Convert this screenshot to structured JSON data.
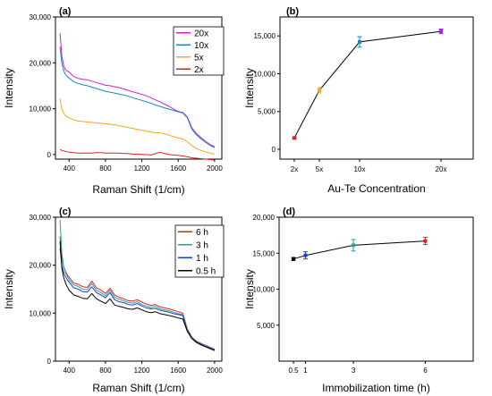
{
  "chart_data": [
    {
      "id": "a",
      "type": "line",
      "panel_label": "(a)",
      "xlabel": "Raman Shift (1/cm)",
      "ylabel": "Intensity",
      "xlim": [
        250,
        2080
      ],
      "ylim": [
        -1000,
        30000
      ],
      "xticks": [
        400,
        800,
        1200,
        1600,
        2000
      ],
      "yticks": [
        0,
        10000,
        20000,
        30000
      ],
      "ytick_labels": [
        "0",
        "10,000",
        "20,000",
        "30,000"
      ],
      "legend_position": "top-right",
      "series": [
        {
          "name": "20x",
          "color": "#d21fd2",
          "x": [
            300,
            320,
            340,
            360,
            380,
            400,
            450,
            500,
            550,
            600,
            650,
            700,
            750,
            800,
            850,
            900,
            950,
            1000,
            1050,
            1100,
            1150,
            1200,
            1250,
            1300,
            1350,
            1400,
            1450,
            1500,
            1550,
            1600,
            1650,
            1700,
            1750,
            1800,
            1850,
            1900,
            1950,
            2000
          ],
          "y": [
            26500,
            21500,
            19500,
            18500,
            18200,
            18000,
            17000,
            16600,
            16400,
            16300,
            16000,
            15700,
            15400,
            15100,
            15000,
            14800,
            14600,
            14300,
            14000,
            13700,
            13400,
            13100,
            12800,
            12400,
            11900,
            11500,
            11000,
            10500,
            9900,
            9400,
            9200,
            8200,
            5800,
            4600,
            3700,
            2900,
            2200,
            1700
          ]
        },
        {
          "name": "10x",
          "color": "#1b85c8",
          "x": [
            300,
            320,
            340,
            360,
            380,
            400,
            450,
            500,
            550,
            600,
            650,
            700,
            750,
            800,
            850,
            900,
            950,
            1000,
            1050,
            1100,
            1150,
            1200,
            1250,
            1300,
            1350,
            1400,
            1450,
            1500,
            1550,
            1600,
            1650,
            1700,
            1750,
            1800,
            1850,
            1900,
            1950,
            2000
          ],
          "y": [
            23500,
            20000,
            18300,
            17500,
            17000,
            16700,
            15900,
            15500,
            15200,
            15000,
            14700,
            14400,
            14100,
            13800,
            13600,
            13400,
            13200,
            13000,
            12700,
            12400,
            12100,
            11800,
            11500,
            11200,
            10800,
            10500,
            10200,
            9900,
            9600,
            9300,
            9100,
            8000,
            5500,
            4300,
            3400,
            2700,
            2000,
            1500
          ]
        },
        {
          "name": "5x",
          "color": "#f5a623",
          "x": [
            300,
            320,
            340,
            360,
            380,
            400,
            450,
            500,
            550,
            600,
            650,
            700,
            750,
            800,
            850,
            900,
            950,
            1000,
            1050,
            1100,
            1150,
            1200,
            1250,
            1300,
            1350,
            1400,
            1450,
            1500,
            1550,
            1600,
            1650,
            1700,
            1750,
            1800,
            1850,
            1900,
            1950,
            2000
          ],
          "y": [
            12200,
            10000,
            9000,
            8500,
            8200,
            8000,
            7600,
            7300,
            7200,
            7100,
            7000,
            6900,
            6800,
            6700,
            6600,
            6500,
            6300,
            6100,
            5900,
            5700,
            5500,
            5300,
            5100,
            4900,
            4700,
            4800,
            4500,
            4200,
            3900,
            3600,
            3400,
            2800,
            1900,
            1300,
            900,
            600,
            300,
            100
          ]
        },
        {
          "name": "2x",
          "color": "#e02020",
          "x": [
            300,
            320,
            340,
            360,
            380,
            400,
            450,
            500,
            550,
            600,
            650,
            700,
            750,
            800,
            850,
            900,
            950,
            1000,
            1050,
            1100,
            1150,
            1200,
            1250,
            1300,
            1350,
            1400,
            1450,
            1500,
            1550,
            1600,
            1650,
            1700,
            1750,
            1800,
            1850,
            1900,
            1950,
            2000
          ],
          "y": [
            1100,
            900,
            800,
            700,
            600,
            500,
            400,
            300,
            300,
            300,
            300,
            400,
            400,
            300,
            300,
            300,
            300,
            200,
            200,
            100,
            100,
            0,
            0,
            -100,
            200,
            500,
            200,
            0,
            -100,
            -200,
            -300,
            -500,
            -700,
            -800,
            -900,
            -1000,
            -1100,
            -1200
          ]
        }
      ]
    },
    {
      "id": "b",
      "type": "scatter",
      "panel_label": "(b)",
      "xlabel": "Au-Te Concentration",
      "ylabel": "Intensity",
      "ylim": [
        -1300,
        17500
      ],
      "categories": [
        "2x",
        "5x",
        "10x",
        "20x"
      ],
      "yticks": [
        0,
        5000,
        10000,
        15000
      ],
      "ytick_labels": [
        "0",
        "5,000",
        "10,000",
        "15,000"
      ],
      "points": [
        {
          "x": "2x",
          "y": 1500,
          "err": 150,
          "color": "#e02020"
        },
        {
          "x": "5x",
          "y": 7800,
          "err": 350,
          "color": "#f5a623"
        },
        {
          "x": "10x",
          "y": 14200,
          "err": 700,
          "color": "#1b85c8"
        },
        {
          "x": "20x",
          "y": 15600,
          "err": 300,
          "color": "#a020f0"
        }
      ]
    },
    {
      "id": "c",
      "type": "line",
      "panel_label": "(c)",
      "xlabel": "Raman Shift (1/cm)",
      "ylabel": "Intensity",
      "xlim": [
        250,
        2080
      ],
      "ylim": [
        0,
        30000
      ],
      "xticks": [
        400,
        800,
        1200,
        1600,
        2000
      ],
      "yticks": [
        0,
        10000,
        20000,
        30000
      ],
      "ytick_labels": [
        "0",
        "10,000",
        "20,000",
        "30,000"
      ],
      "legend_position": "top-right",
      "series": [
        {
          "name": "6 h",
          "color": "#e02020",
          "x": [
            300,
            320,
            340,
            360,
            380,
            400,
            450,
            500,
            550,
            600,
            650,
            700,
            750,
            800,
            850,
            900,
            950,
            1000,
            1050,
            1100,
            1150,
            1200,
            1250,
            1300,
            1350,
            1400,
            1450,
            1500,
            1550,
            1600,
            1650,
            1700,
            1750,
            1800,
            1850,
            1900,
            1950,
            2000
          ],
          "y": [
            26000,
            21500,
            19800,
            18700,
            18000,
            17500,
            16300,
            16000,
            15500,
            15400,
            16700,
            15300,
            14800,
            14100,
            15200,
            13800,
            13300,
            13000,
            12600,
            12500,
            12800,
            12300,
            11900,
            11600,
            11800,
            11300,
            11100,
            10900,
            10600,
            10300,
            10000,
            6700,
            5000,
            4200,
            3700,
            3300,
            2900,
            2500
          ]
        },
        {
          "name": "3 h",
          "color": "#2aa198",
          "x": [
            300,
            320,
            340,
            360,
            380,
            400,
            450,
            500,
            550,
            600,
            650,
            700,
            750,
            800,
            850,
            900,
            950,
            1000,
            1050,
            1100,
            1150,
            1200,
            1250,
            1300,
            1350,
            1400,
            1450,
            1500,
            1550,
            1600,
            1650,
            1700,
            1750,
            1800,
            1850,
            1900,
            1950,
            2000
          ],
          "y": [
            29500,
            22500,
            19800,
            18500,
            17700,
            17000,
            15900,
            15600,
            15000,
            14900,
            16200,
            14800,
            14300,
            13600,
            14800,
            13300,
            12900,
            12600,
            12200,
            12100,
            12400,
            11800,
            11500,
            11200,
            11400,
            10900,
            10700,
            10500,
            10200,
            9900,
            9700,
            6500,
            4900,
            4100,
            3600,
            3200,
            2800,
            2400
          ]
        },
        {
          "name": "1 h",
          "color": "#1a3fcc",
          "x": [
            300,
            320,
            340,
            360,
            380,
            400,
            450,
            500,
            550,
            600,
            650,
            700,
            750,
            800,
            850,
            900,
            950,
            1000,
            1050,
            1100,
            1150,
            1200,
            1250,
            1300,
            1350,
            1400,
            1450,
            1500,
            1550,
            1600,
            1650,
            1700,
            1750,
            1800,
            1850,
            1900,
            1950,
            2000
          ],
          "y": [
            23500,
            20000,
            18600,
            17600,
            17000,
            16500,
            15300,
            15000,
            14500,
            14400,
            15500,
            14300,
            13800,
            13200,
            14300,
            12800,
            12400,
            12200,
            11800,
            11700,
            12000,
            11500,
            11100,
            10900,
            11000,
            10600,
            10400,
            10200,
            9900,
            9700,
            9500,
            6400,
            4800,
            4000,
            3500,
            3100,
            2700,
            2300
          ]
        },
        {
          "name": "0.5 h",
          "color": "#000000",
          "x": [
            300,
            320,
            340,
            360,
            380,
            400,
            450,
            500,
            550,
            600,
            650,
            700,
            750,
            800,
            850,
            900,
            950,
            1000,
            1050,
            1100,
            1150,
            1200,
            1250,
            1300,
            1350,
            1400,
            1450,
            1500,
            1550,
            1600,
            1650,
            1700,
            1750,
            1800,
            1850,
            1900,
            1950,
            2000
          ],
          "y": [
            25000,
            19500,
            17500,
            16300,
            15500,
            14800,
            13800,
            13500,
            13100,
            13000,
            14100,
            13000,
            12500,
            12000,
            13000,
            11700,
            11400,
            11200,
            10900,
            10800,
            11100,
            10700,
            10300,
            10100,
            10300,
            9900,
            9700,
            9500,
            9300,
            9000,
            8800,
            6200,
            4700,
            3900,
            3400,
            3000,
            2600,
            2200
          ]
        }
      ]
    },
    {
      "id": "d",
      "type": "scatter",
      "panel_label": "(d)",
      "xlabel": "Immobilization time (h)",
      "ylabel": "Intensity",
      "xlim": [
        -0.1,
        8.0
      ],
      "ylim": [
        0,
        20000
      ],
      "xticks": [
        0.5,
        1,
        3,
        6
      ],
      "xtick_labels": [
        "0.5",
        "1",
        "3",
        "6"
      ],
      "yticks": [
        5000,
        10000,
        15000,
        20000
      ],
      "ytick_labels": [
        "5,000",
        "10,000",
        "15,000",
        "20,000"
      ],
      "points": [
        {
          "x": 0.5,
          "y": 14200,
          "err": 200,
          "color": "#000000"
        },
        {
          "x": 1,
          "y": 14700,
          "err": 500,
          "color": "#1a3fcc"
        },
        {
          "x": 3,
          "y": 16100,
          "err": 800,
          "color": "#2aa198"
        },
        {
          "x": 6,
          "y": 16700,
          "err": 500,
          "color": "#e02020"
        }
      ]
    }
  ]
}
